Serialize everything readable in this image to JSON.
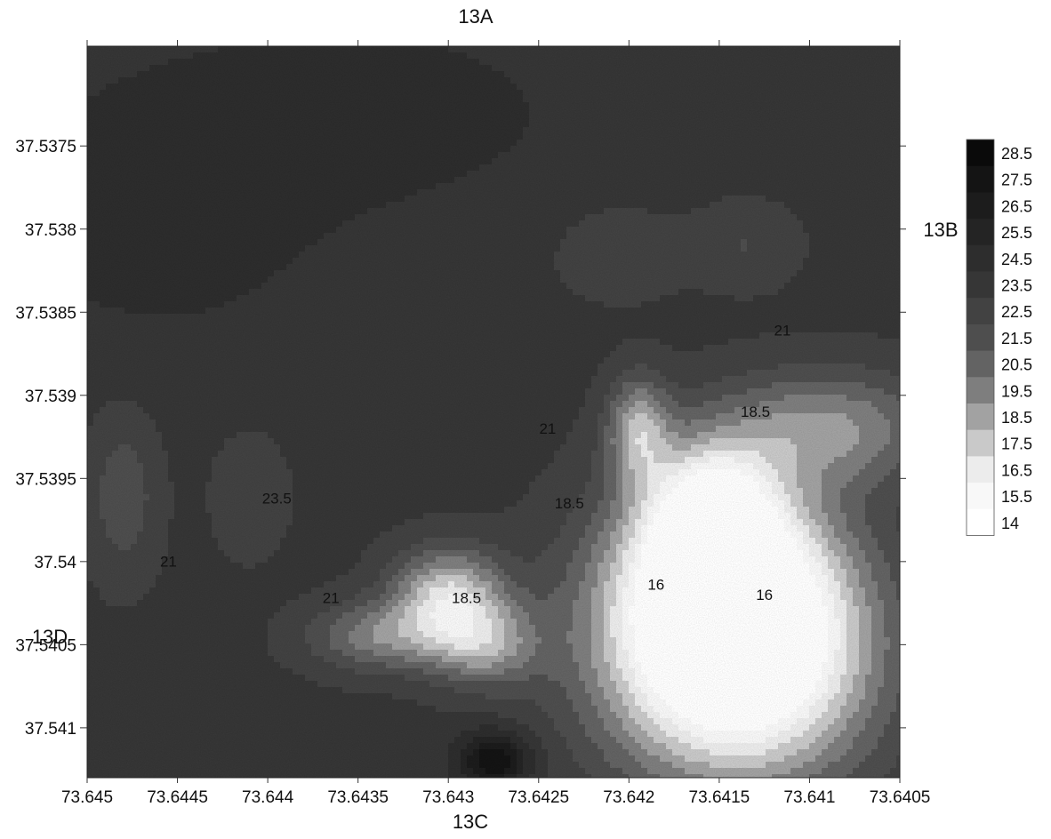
{
  "chart_data": {
    "type": "heatmap",
    "subtype": "filled-contour",
    "title": "",
    "xlabel": "",
    "ylabel": "",
    "side_labels": {
      "top": "13A",
      "right": "13B",
      "bottom": "13C",
      "left": "13D"
    },
    "x_reversed": true,
    "y_reversed": true,
    "xlim": [
      73.645,
      73.6405
    ],
    "ylim": [
      37.5369,
      37.5413
    ],
    "x_ticks": [
      "73.645",
      "73.6445",
      "73.644",
      "73.6435",
      "73.643",
      "73.6425",
      "73.642",
      "73.6415",
      "73.641",
      "73.6405"
    ],
    "y_ticks": [
      "37.5375",
      "37.538",
      "37.5385",
      "37.539",
      "37.5395",
      "37.54",
      "37.5405",
      "37.541"
    ],
    "colorbar": {
      "levels": [
        "28.5",
        "27.5",
        "26.5",
        "25.5",
        "24.5",
        "23.5",
        "22.5",
        "21.5",
        "20.5",
        "19.5",
        "18.5",
        "17.5",
        "16.5",
        "15.5",
        "14"
      ],
      "colors": [
        "#0a0a0a",
        "#141414",
        "#1c1c1c",
        "#242424",
        "#2d2d2d",
        "#363636",
        "#424242",
        "#4e4e4e",
        "#636363",
        "#7e7e7e",
        "#a2a2a2",
        "#c9c9c9",
        "#ececec",
        "#f8f8f8",
        "#ffffff"
      ]
    },
    "contour_labels": [
      {
        "text": "23.5",
        "x": 73.64395,
        "y": 37.53965
      },
      {
        "text": "21",
        "x": 73.64455,
        "y": 37.54003
      },
      {
        "text": "21",
        "x": 73.64365,
        "y": 37.54025
      },
      {
        "text": "18.5",
        "x": 73.6429,
        "y": 37.54025
      },
      {
        "text": "21",
        "x": 73.64245,
        "y": 37.53923
      },
      {
        "text": "18.5",
        "x": 73.64233,
        "y": 37.53968
      },
      {
        "text": "18.5",
        "x": 73.6413,
        "y": 37.53913
      },
      {
        "text": "21",
        "x": 73.64115,
        "y": 37.53864
      },
      {
        "text": "16",
        "x": 73.64185,
        "y": 37.54017
      },
      {
        "text": "16",
        "x": 73.64125,
        "y": 37.54023
      }
    ],
    "field": {
      "background": 23.8,
      "features": [
        {
          "x": 73.6414,
          "y": 37.54065,
          "value": 14.5,
          "sx": 0.00052,
          "sy": 0.00052
        },
        {
          "x": 73.64148,
          "y": 37.54015,
          "value": 15.5,
          "sx": 0.00045,
          "sy": 0.00045
        },
        {
          "x": 73.64155,
          "y": 37.5397,
          "value": 17.5,
          "sx": 0.00025,
          "sy": 0.0003
        },
        {
          "x": 73.6409,
          "y": 37.5392,
          "value": 19.5,
          "sx": 0.00045,
          "sy": 0.00025
        },
        {
          "x": 73.64195,
          "y": 37.5392,
          "value": 19.0,
          "sx": 0.00012,
          "sy": 0.00022
        },
        {
          "x": 73.6428,
          "y": 37.5405,
          "value": 19.5,
          "sx": 0.00022,
          "sy": 0.00018
        },
        {
          "x": 73.643,
          "y": 37.5402,
          "value": 17.8,
          "sx": 0.00022,
          "sy": 0.0002
        },
        {
          "x": 73.64338,
          "y": 37.54045,
          "value": 20.0,
          "sx": 0.00028,
          "sy": 0.00015
        },
        {
          "x": 73.64275,
          "y": 37.5412,
          "value": 28.5,
          "sx": 0.00014,
          "sy": 0.00012
        },
        {
          "x": 73.64135,
          "y": 37.5381,
          "value": 22.5,
          "sx": 0.0002,
          "sy": 0.00018
        },
        {
          "x": 73.64205,
          "y": 37.53815,
          "value": 22.8,
          "sx": 0.00025,
          "sy": 0.0002
        },
        {
          "x": 73.6434,
          "y": 37.5373,
          "value": 25.0,
          "sx": 0.0008,
          "sy": 0.0004
        },
        {
          "x": 73.6446,
          "y": 37.5379,
          "value": 25.0,
          "sx": 0.0007,
          "sy": 0.0006
        },
        {
          "x": 73.6448,
          "y": 37.5396,
          "value": 21.8,
          "sx": 0.00014,
          "sy": 0.00035
        },
        {
          "x": 73.6441,
          "y": 37.5396,
          "value": 22.5,
          "sx": 0.00014,
          "sy": 0.00025
        }
      ]
    }
  }
}
